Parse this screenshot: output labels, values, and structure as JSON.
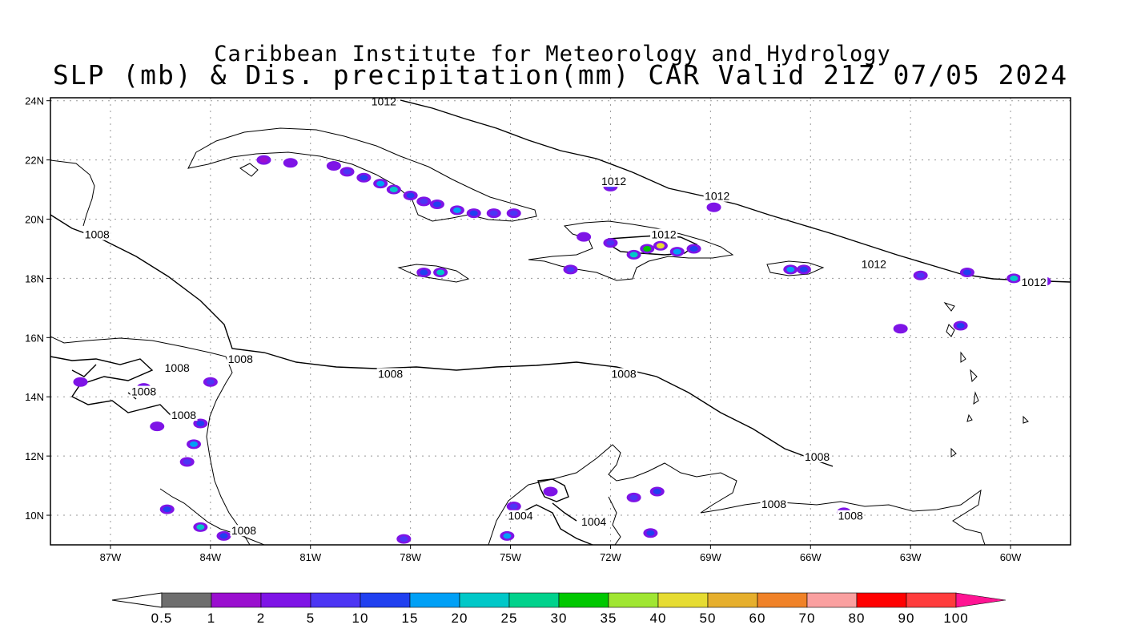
{
  "header": {
    "title_line1": "Caribbean Institute for Meteorology and Hydrology",
    "title_line2": "SLP (mb) & Dis. precipitation(mm) CAR Valid 21Z 07/05 2024"
  },
  "axes": {
    "lat_labels": [
      "24N",
      "22N",
      "20N",
      "18N",
      "16N",
      "14N",
      "12N",
      "10N"
    ],
    "lat_values": [
      24,
      22,
      20,
      18,
      16,
      14,
      12,
      10
    ],
    "lon_labels": [
      "87W",
      "84W",
      "81W",
      "78W",
      "75W",
      "72W",
      "69W",
      "66W",
      "63W",
      "60W"
    ],
    "lon_values": [
      -87,
      -84,
      -81,
      -78,
      -75,
      -72,
      -69,
      -66,
      -63,
      -60
    ],
    "lon_range": [
      -88.8,
      -58.2
    ],
    "lat_range": [
      9,
      24.1
    ]
  },
  "isobar_labels": [
    {
      "text": "1012",
      "lon": -78.8,
      "lat": 23.9
    },
    {
      "text": "1012",
      "lon": -71.9,
      "lat": 21.2
    },
    {
      "text": "1012",
      "lon": -68.8,
      "lat": 20.7
    },
    {
      "text": "1012",
      "lon": -70.4,
      "lat": 19.4
    },
    {
      "text": "1012",
      "lon": -64.1,
      "lat": 18.4
    },
    {
      "text": "1012",
      "lon": -59.3,
      "lat": 17.8
    },
    {
      "text": "1008",
      "lon": -87.4,
      "lat": 19.4
    },
    {
      "text": "1008",
      "lon": -83.1,
      "lat": 15.2
    },
    {
      "text": "1008",
      "lon": -85.0,
      "lat": 14.9
    },
    {
      "text": "1008",
      "lon": -86.0,
      "lat": 14.1
    },
    {
      "text": "1008",
      "lon": -84.8,
      "lat": 13.3
    },
    {
      "text": "1008",
      "lon": -78.6,
      "lat": 14.7
    },
    {
      "text": "1008",
      "lon": -71.6,
      "lat": 14.7
    },
    {
      "text": "1008",
      "lon": -65.8,
      "lat": 11.9
    },
    {
      "text": "1008",
      "lon": -67.1,
      "lat": 10.3
    },
    {
      "text": "1008",
      "lon": -64.8,
      "lat": 9.9
    },
    {
      "text": "1008",
      "lon": -83.0,
      "lat": 9.4
    },
    {
      "text": "1004",
      "lon": -74.7,
      "lat": 9.9
    },
    {
      "text": "1004",
      "lon": -72.5,
      "lat": 9.7
    }
  ],
  "precip_cells": [
    {
      "lon": -80.3,
      "lat": 21.8,
      "mm": 2
    },
    {
      "lon": -79.9,
      "lat": 21.6,
      "mm": 5
    },
    {
      "lon": -79.4,
      "lat": 21.4,
      "mm": 10
    },
    {
      "lon": -78.9,
      "lat": 21.2,
      "mm": 15
    },
    {
      "lon": -78.5,
      "lat": 21.0,
      "mm": 20
    },
    {
      "lon": -78.0,
      "lat": 20.8,
      "mm": 10
    },
    {
      "lon": -77.6,
      "lat": 20.6,
      "mm": 5
    },
    {
      "lon": -77.2,
      "lat": 20.5,
      "mm": 10
    },
    {
      "lon": -76.6,
      "lat": 20.3,
      "mm": 15
    },
    {
      "lon": -76.1,
      "lat": 20.2,
      "mm": 10
    },
    {
      "lon": -75.5,
      "lat": 20.2,
      "mm": 5
    },
    {
      "lon": -74.9,
      "lat": 20.2,
      "mm": 5
    },
    {
      "lon": -81.6,
      "lat": 21.9,
      "mm": 2
    },
    {
      "lon": -82.4,
      "lat": 22.0,
      "mm": 1
    },
    {
      "lon": -77.6,
      "lat": 18.2,
      "mm": 10
    },
    {
      "lon": -77.1,
      "lat": 18.2,
      "mm": 20
    },
    {
      "lon": -71.3,
      "lat": 18.8,
      "mm": 20
    },
    {
      "lon": -70.9,
      "lat": 19.0,
      "mm": 30
    },
    {
      "lon": -70.5,
      "lat": 19.1,
      "mm": 40
    },
    {
      "lon": -70.0,
      "lat": 18.9,
      "mm": 15
    },
    {
      "lon": -69.5,
      "lat": 19.0,
      "mm": 10
    },
    {
      "lon": -72.0,
      "lat": 19.2,
      "mm": 5
    },
    {
      "lon": -72.8,
      "lat": 19.4,
      "mm": 2
    },
    {
      "lon": -73.2,
      "lat": 18.3,
      "mm": 5
    },
    {
      "lon": -66.6,
      "lat": 18.3,
      "mm": 15
    },
    {
      "lon": -66.2,
      "lat": 18.3,
      "mm": 10
    },
    {
      "lon": -62.7,
      "lat": 18.1,
      "mm": 5
    },
    {
      "lon": -61.3,
      "lat": 18.2,
      "mm": 10
    },
    {
      "lon": -59.9,
      "lat": 18.0,
      "mm": 20
    },
    {
      "lon": -59.0,
      "lat": 17.9,
      "mm": 15
    },
    {
      "lon": -61.5,
      "lat": 16.4,
      "mm": 10
    },
    {
      "lon": -84.0,
      "lat": 14.5,
      "mm": 5
    },
    {
      "lon": -84.3,
      "lat": 13.1,
      "mm": 10
    },
    {
      "lon": -84.5,
      "lat": 12.4,
      "mm": 15
    },
    {
      "lon": -84.7,
      "lat": 11.8,
      "mm": 5
    },
    {
      "lon": -86.0,
      "lat": 14.3,
      "mm": 5
    },
    {
      "lon": -87.9,
      "lat": 14.5,
      "mm": 2
    },
    {
      "lon": -85.6,
      "lat": 13.0,
      "mm": 2
    },
    {
      "lon": -85.3,
      "lat": 10.2,
      "mm": 10
    },
    {
      "lon": -84.3,
      "lat": 9.6,
      "mm": 20
    },
    {
      "lon": -83.6,
      "lat": 9.3,
      "mm": 10
    },
    {
      "lon": -78.2,
      "lat": 9.2,
      "mm": 5
    },
    {
      "lon": -75.1,
      "lat": 9.3,
      "mm": 15
    },
    {
      "lon": -74.9,
      "lat": 10.3,
      "mm": 5
    },
    {
      "lon": -73.8,
      "lat": 10.8,
      "mm": 2
    },
    {
      "lon": -71.3,
      "lat": 10.6,
      "mm": 5
    },
    {
      "lon": -70.6,
      "lat": 10.8,
      "mm": 10
    },
    {
      "lon": -70.8,
      "lat": 9.4,
      "mm": 10
    },
    {
      "lon": -65.0,
      "lat": 10.1,
      "mm": 2
    },
    {
      "lon": -72.0,
      "lat": 21.1,
      "mm": 5
    },
    {
      "lon": -68.9,
      "lat": 20.4,
      "mm": 2
    },
    {
      "lon": -63.3,
      "lat": 16.3,
      "mm": 2
    }
  ],
  "colorbar": {
    "labels": [
      "0.5",
      "1",
      "2",
      "5",
      "10",
      "15",
      "20",
      "25",
      "30",
      "35",
      "40",
      "50",
      "60",
      "70",
      "80",
      "90",
      "100"
    ],
    "colors": [
      "#6e6e6e",
      "#9a0fcf",
      "#7e14e6",
      "#4c35f4",
      "#2040f0",
      "#00a0f6",
      "#00c8c8",
      "#00d28c",
      "#00c800",
      "#a0e632",
      "#e6dc32",
      "#e6af2d",
      "#f08228",
      "#faa0a0",
      "#ff0000",
      "#ff3c3c"
    ],
    "end_color": "#ff1493"
  }
}
